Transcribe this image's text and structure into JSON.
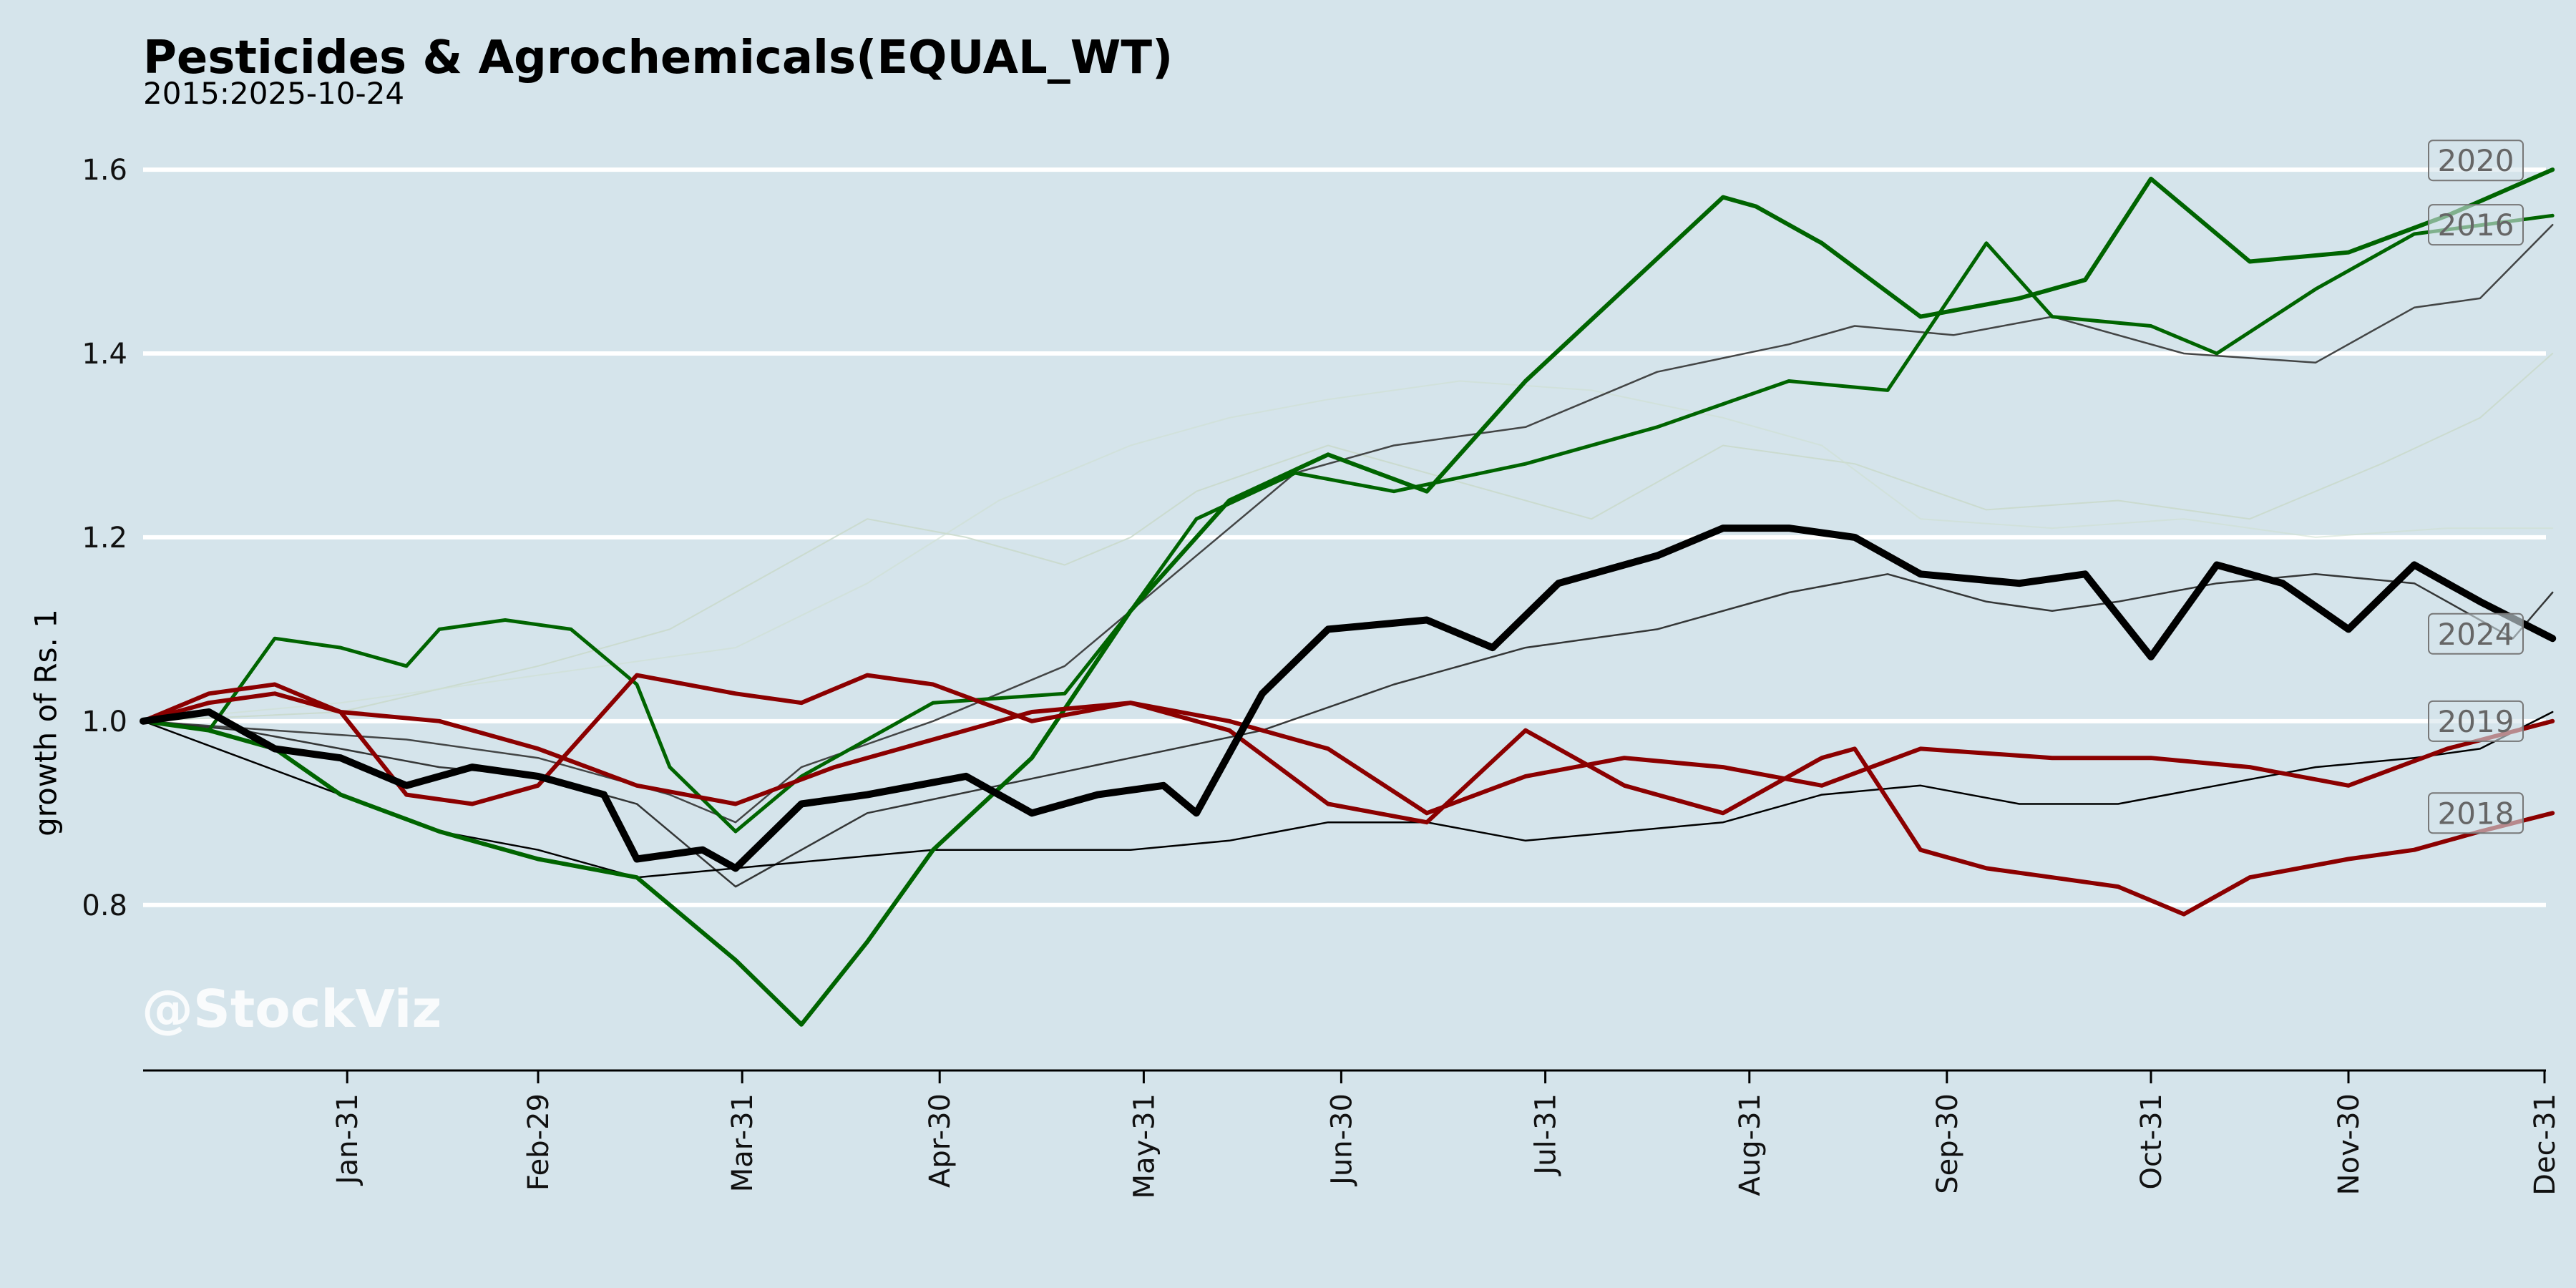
{
  "chart_data": {
    "type": "line",
    "title": "Pesticides & Agrochemicals(EQUAL_WT)",
    "subtitle": "2015:2025-10-24",
    "ylabel": "growth of Rs. 1",
    "xlabel": "",
    "watermark": "@StockViz",
    "ylim": [
      0.62,
      1.66
    ],
    "xlim": [
      0,
      365
    ],
    "yticks": [
      0.8,
      1.0,
      1.2,
      1.4,
      1.6
    ],
    "ytick_labels": [
      "0.8",
      "1.0",
      "1.2",
      "1.4",
      "1.6"
    ],
    "xticks": [
      31,
      60,
      91,
      121,
      152,
      182,
      213,
      244,
      274,
      305,
      335,
      366
    ],
    "xtick_labels": [
      "Jan-31",
      "Feb-29",
      "Mar-31",
      "Apr-30",
      "May-31",
      "Jun-30",
      "Jul-31",
      "Aug-31",
      "Sep-30",
      "Oct-31",
      "Nov-30",
      "Dec-31"
    ],
    "grid": "horizontal",
    "colors": {
      "background": "#d5e4eb",
      "grid": "#ffffff",
      "up": "#006400",
      "down": "#8b0000",
      "neutral": "#000000",
      "faded": "#c8d8c8",
      "label_text": "#666666"
    },
    "series": [
      {
        "name": "2020",
        "color": "#006400",
        "width": 6,
        "opacity": 1,
        "x": [
          0,
          10,
          20,
          30,
          45,
          60,
          75,
          90,
          100,
          110,
          120,
          135,
          150,
          165,
          180,
          195,
          210,
          225,
          240,
          245,
          255,
          270,
          285,
          295,
          305,
          320,
          335,
          350,
          366
        ],
        "y": [
          1.0,
          0.99,
          0.97,
          0.92,
          0.88,
          0.85,
          0.83,
          0.74,
          0.67,
          0.76,
          0.86,
          0.96,
          1.12,
          1.24,
          1.29,
          1.25,
          1.37,
          1.47,
          1.57,
          1.56,
          1.52,
          1.44,
          1.46,
          1.48,
          1.59,
          1.5,
          1.51,
          1.55,
          1.6
        ]
      },
      {
        "name": "2016",
        "color": "#006400",
        "width": 5,
        "opacity": 1,
        "x": [
          0,
          10,
          20,
          30,
          40,
          45,
          55,
          65,
          75,
          80,
          90,
          100,
          120,
          140,
          150,
          160,
          175,
          190,
          210,
          230,
          250,
          265,
          280,
          290,
          305,
          315,
          330,
          345,
          366
        ],
        "y": [
          1.0,
          0.99,
          1.09,
          1.08,
          1.06,
          1.1,
          1.11,
          1.1,
          1.04,
          0.95,
          0.88,
          0.94,
          1.02,
          1.03,
          1.12,
          1.22,
          1.27,
          1.25,
          1.28,
          1.32,
          1.37,
          1.36,
          1.52,
          1.44,
          1.43,
          1.4,
          1.47,
          1.53,
          1.55
        ]
      },
      {
        "name": "gray-a",
        "color": "#333333",
        "width": 2.5,
        "opacity": 0.9,
        "x": [
          0,
          20,
          40,
          60,
          80,
          90,
          100,
          120,
          140,
          160,
          175,
          190,
          210,
          230,
          250,
          260,
          275,
          290,
          310,
          330,
          345,
          355,
          366
        ],
        "y": [
          1.0,
          0.99,
          0.98,
          0.96,
          0.92,
          0.89,
          0.95,
          1.0,
          1.06,
          1.18,
          1.27,
          1.3,
          1.32,
          1.38,
          1.41,
          1.43,
          1.42,
          1.44,
          1.4,
          1.39,
          1.45,
          1.46,
          1.54
        ]
      },
      {
        "name": "2024",
        "color": "#000000",
        "width": 10,
        "opacity": 1,
        "x": [
          0,
          10,
          20,
          30,
          40,
          50,
          60,
          70,
          75,
          85,
          90,
          100,
          110,
          125,
          135,
          145,
          155,
          160,
          170,
          180,
          195,
          205,
          215,
          230,
          240,
          250,
          260,
          270,
          285,
          295,
          305,
          315,
          325,
          335,
          345,
          355,
          366
        ],
        "y": [
          1.0,
          1.01,
          0.97,
          0.96,
          0.93,
          0.95,
          0.94,
          0.92,
          0.85,
          0.86,
          0.84,
          0.91,
          0.92,
          0.94,
          0.9,
          0.92,
          0.93,
          0.9,
          1.03,
          1.1,
          1.11,
          1.08,
          1.15,
          1.18,
          1.21,
          1.21,
          1.2,
          1.16,
          1.15,
          1.16,
          1.07,
          1.17,
          1.15,
          1.1,
          1.17,
          1.13,
          1.09
        ]
      },
      {
        "name": "gray-b",
        "color": "#222222",
        "width": 2.5,
        "opacity": 0.9,
        "x": [
          0,
          15,
          30,
          45,
          60,
          75,
          90,
          110,
          130,
          150,
          170,
          190,
          210,
          230,
          250,
          265,
          280,
          290,
          300,
          315,
          330,
          345,
          360,
          366
        ],
        "y": [
          1.0,
          0.99,
          0.97,
          0.95,
          0.94,
          0.91,
          0.82,
          0.9,
          0.93,
          0.96,
          0.99,
          1.04,
          1.08,
          1.1,
          1.14,
          1.16,
          1.13,
          1.12,
          1.13,
          1.15,
          1.16,
          1.15,
          1.09,
          1.14
        ]
      },
      {
        "name": "2019",
        "color": "#8b0000",
        "width": 6,
        "opacity": 1,
        "x": [
          0,
          10,
          20,
          30,
          45,
          60,
          75,
          90,
          105,
          120,
          135,
          150,
          165,
          180,
          195,
          210,
          225,
          240,
          255,
          270,
          290,
          305,
          320,
          335,
          350,
          366
        ],
        "y": [
          1.0,
          1.02,
          1.03,
          1.01,
          1.0,
          0.97,
          0.93,
          0.91,
          0.95,
          0.98,
          1.01,
          1.02,
          1.0,
          0.97,
          0.9,
          0.94,
          0.96,
          0.95,
          0.93,
          0.97,
          0.96,
          0.96,
          0.95,
          0.93,
          0.97,
          1.0
        ]
      },
      {
        "name": "red-b",
        "color": "#8b0000",
        "width": 6,
        "opacity": 1,
        "x": [
          0,
          10,
          20,
          30,
          40,
          50,
          60,
          75,
          90,
          100,
          110,
          120,
          135,
          150,
          165,
          180,
          195,
          210,
          225,
          240,
          255,
          260,
          270,
          280,
          290,
          300,
          310,
          320,
          335,
          345,
          355,
          366
        ],
        "y": [
          1.0,
          1.03,
          1.04,
          1.01,
          0.92,
          0.91,
          0.93,
          1.05,
          1.03,
          1.02,
          1.05,
          1.04,
          1.0,
          1.02,
          0.99,
          0.91,
          0.89,
          0.99,
          0.93,
          0.9,
          0.96,
          0.97,
          0.86,
          0.84,
          0.83,
          0.82,
          0.79,
          0.83,
          0.85,
          0.86,
          0.88,
          0.9
        ]
      },
      {
        "name": "2018",
        "color": "#000000",
        "width": 2.5,
        "opacity": 1,
        "x": [
          0,
          15,
          30,
          45,
          60,
          75,
          90,
          105,
          120,
          135,
          150,
          165,
          180,
          195,
          210,
          225,
          240,
          255,
          270,
          285,
          300,
          315,
          330,
          345,
          355,
          366
        ],
        "y": [
          1.0,
          0.96,
          0.92,
          0.88,
          0.86,
          0.83,
          0.84,
          0.85,
          0.86,
          0.86,
          0.86,
          0.87,
          0.89,
          0.89,
          0.87,
          0.88,
          0.89,
          0.92,
          0.93,
          0.91,
          0.91,
          0.93,
          0.95,
          0.96,
          0.97,
          1.01
        ]
      },
      {
        "name": "faded-a",
        "color": "#c8d8c8",
        "width": 2,
        "opacity": 0.8,
        "x": [
          0,
          30,
          60,
          80,
          100,
          110,
          125,
          140,
          150,
          160,
          180,
          200,
          220,
          240,
          260,
          280,
          300,
          320,
          340,
          355,
          366
        ],
        "y": [
          1.0,
          1.01,
          1.06,
          1.1,
          1.18,
          1.22,
          1.2,
          1.17,
          1.2,
          1.25,
          1.3,
          1.26,
          1.22,
          1.3,
          1.28,
          1.23,
          1.24,
          1.22,
          1.28,
          1.33,
          1.4
        ]
      },
      {
        "name": "faded-b",
        "color": "#cfdfd0",
        "width": 2,
        "opacity": 0.6,
        "x": [
          0,
          30,
          60,
          90,
          110,
          130,
          150,
          165,
          180,
          200,
          220,
          240,
          255,
          270,
          290,
          310,
          330,
          350,
          366
        ],
        "y": [
          1.0,
          1.02,
          1.05,
          1.08,
          1.15,
          1.24,
          1.3,
          1.33,
          1.35,
          1.37,
          1.36,
          1.33,
          1.3,
          1.22,
          1.21,
          1.22,
          1.2,
          1.21,
          1.21
        ]
      }
    ],
    "end_labels": [
      {
        "text": "2020",
        "y": 1.61
      },
      {
        "text": "2016",
        "y": 1.54
      },
      {
        "text": "2024",
        "y": 1.095
      },
      {
        "text": "2019",
        "y": 1.0
      },
      {
        "text": "2018",
        "y": 0.9
      }
    ]
  }
}
